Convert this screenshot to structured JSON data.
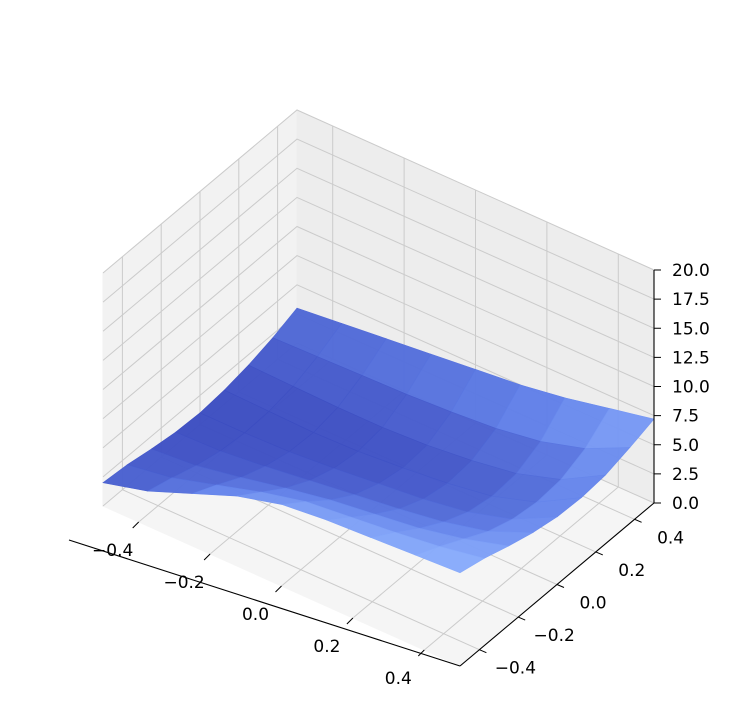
{
  "chart_data": {
    "type": "surface3d",
    "title": "",
    "xlabel": "",
    "ylabel": "",
    "zlabel": "",
    "grid": true,
    "colormap": "coolwarm",
    "xlim": [
      -0.5,
      0.5
    ],
    "ylim": [
      -0.5,
      0.5
    ],
    "zlim": [
      0,
      20
    ],
    "x_ticks": [
      -0.4,
      -0.2,
      0.0,
      0.2,
      0.4
    ],
    "x_tick_labels": [
      "−0.4",
      "−0.2",
      "0.0",
      "0.2",
      "0.4"
    ],
    "y_ticks": [
      -0.4,
      -0.2,
      0.0,
      0.2,
      0.4
    ],
    "y_tick_labels": [
      "−0.4",
      "−0.2",
      "0.0",
      "0.2",
      "0.4"
    ],
    "z_ticks": [
      0.0,
      2.5,
      5.0,
      7.5,
      10.0,
      12.5,
      15.0,
      17.5,
      20.0
    ],
    "z_tick_labels": [
      "0.0",
      "2.5",
      "5.0",
      "7.5",
      "10.0",
      "12.5",
      "15.0",
      "17.5",
      "20.0"
    ],
    "surface": {
      "x": [
        -0.5,
        -0.375,
        -0.25,
        -0.125,
        0.0,
        0.125,
        0.25,
        0.375,
        0.5
      ],
      "y": [
        -0.5,
        -0.375,
        -0.25,
        -0.125,
        0.0,
        0.125,
        0.25,
        0.375,
        0.5
      ],
      "z": [
        [
          2.0,
          1.8,
          1.4,
          1.1,
          1.0,
          1.2,
          1.6,
          2.2,
          3.0
        ],
        [
          3.0,
          2.4,
          1.7,
          1.2,
          1.0,
          1.1,
          1.5,
          2.3,
          3.4
        ],
        [
          4.5,
          3.5,
          2.4,
          1.6,
          1.1,
          1.0,
          1.4,
          2.4,
          3.8
        ],
        [
          6.0,
          4.6,
          3.2,
          2.1,
          1.4,
          1.1,
          1.4,
          2.5,
          4.2
        ],
        [
          7.0,
          5.5,
          3.9,
          2.6,
          1.8,
          1.4,
          1.6,
          2.7,
          4.6
        ],
        [
          7.4,
          5.9,
          4.4,
          3.1,
          2.2,
          1.8,
          2.0,
          3.0,
          5.0
        ],
        [
          7.6,
          6.3,
          4.9,
          3.7,
          2.8,
          2.4,
          2.6,
          3.6,
          5.6
        ],
        [
          7.8,
          6.8,
          5.7,
          4.6,
          3.9,
          3.6,
          3.8,
          4.7,
          6.4
        ],
        [
          8.0,
          7.5,
          6.8,
          6.2,
          5.8,
          5.7,
          5.9,
          6.5,
          7.2
        ]
      ]
    }
  }
}
